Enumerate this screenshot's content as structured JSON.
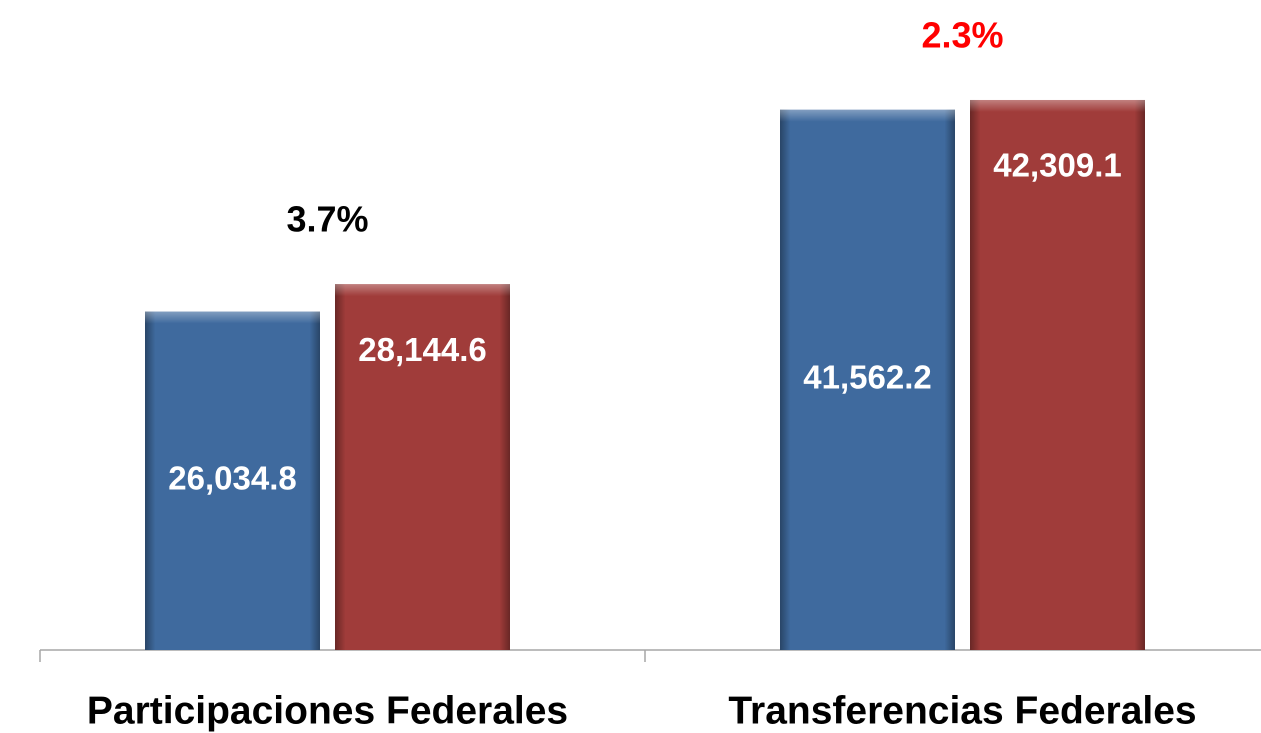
{
  "chart_data": {
    "type": "bar",
    "categories": [
      "Participaciones Federales",
      "Transferencias Federales"
    ],
    "series": [
      {
        "color": "#3f6a9e",
        "values": [
          26034.8,
          41562.2
        ],
        "value_labels": [
          "26,034.8",
          "41,562.2"
        ]
      },
      {
        "color": "#a03c3a",
        "values": [
          28144.6,
          42309.1
        ],
        "value_labels": [
          "28,144.6",
          "42,309.1"
        ]
      }
    ],
    "annotations": [
      {
        "text": "3.7%",
        "color": "#000000"
      },
      {
        "text": "2.3%",
        "color": "#ff0000"
      }
    ],
    "ylim": [
      0,
      50000
    ]
  }
}
